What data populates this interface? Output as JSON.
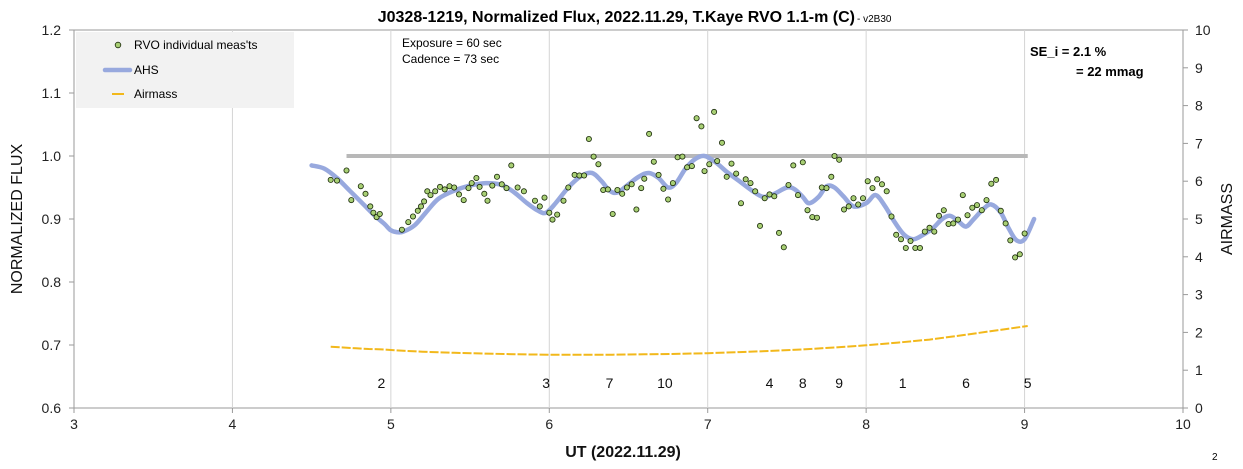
{
  "chart_data": {
    "type": "scatter",
    "title": "J0328-1219, Normalized Flux, 2022.11.29, T.Kaye RVO 1.1-m (C)",
    "subtitle": " - v2B30",
    "xlabel": "UT (2022.11.29)",
    "ylabel": "NORMALIZED FLUX",
    "y2label": "AIRMASS",
    "xlim": [
      3,
      10
    ],
    "ylim": [
      0.6,
      1.2
    ],
    "y2lim": [
      0,
      10
    ],
    "x_ticks": [
      "3",
      "4",
      "5",
      "6",
      "7",
      "8",
      "9",
      "10"
    ],
    "y_ticks": [
      "0.6",
      "0.7",
      "0.8",
      "0.9",
      "1.0",
      "1.1",
      "1.2"
    ],
    "y2_ticks": [
      "0",
      "1",
      "2",
      "3",
      "4",
      "5",
      "6",
      "7",
      "8",
      "9",
      "10"
    ],
    "grid": "vertical",
    "legend": {
      "placement": "top-left",
      "entries": [
        "RVO individual meas'ts",
        "AHS",
        "Airmass"
      ]
    },
    "annotations": {
      "exposure": "Exposure = 60 sec",
      "cadence": "Cadence  = 73 sec",
      "se_line1": "SE_i = 2.1 %",
      "se_line2": "= 22 mmag"
    },
    "colors": {
      "points_fill": "#a8cf74",
      "points_stroke": "#1a2a0a",
      "ahs": "#98a9de",
      "airmass": "#f2b81b",
      "reference": "#b8b8b8"
    },
    "reference_line": {
      "x": [
        4.72,
        9.02
      ],
      "y": 1.0
    },
    "chunk_labels": [
      {
        "x": 4.94,
        "label": "2"
      },
      {
        "x": 5.98,
        "label": "3"
      },
      {
        "x": 6.38,
        "label": "7"
      },
      {
        "x": 6.73,
        "label": "10"
      },
      {
        "x": 7.39,
        "label": "4"
      },
      {
        "x": 7.6,
        "label": "8"
      },
      {
        "x": 7.83,
        "label": "9"
      },
      {
        "x": 8.23,
        "label": "1"
      },
      {
        "x": 8.63,
        "label": "6"
      },
      {
        "x": 9.02,
        "label": "5"
      }
    ],
    "series": [
      {
        "name": "RVO individual meas'ts",
        "type": "scatter",
        "points": [
          [
            4.62,
            0.962
          ],
          [
            4.66,
            0.961
          ],
          [
            4.72,
            0.977
          ],
          [
            4.75,
            0.93
          ],
          [
            4.81,
            0.952
          ],
          [
            4.84,
            0.94
          ],
          [
            4.87,
            0.92
          ],
          [
            4.89,
            0.91
          ],
          [
            4.91,
            0.903
          ],
          [
            4.93,
            0.908
          ],
          [
            5.07,
            0.883
          ],
          [
            5.11,
            0.895
          ],
          [
            5.14,
            0.904
          ],
          [
            5.17,
            0.913
          ],
          [
            5.19,
            0.92
          ],
          [
            5.21,
            0.928
          ],
          [
            5.23,
            0.944
          ],
          [
            5.25,
            0.938
          ],
          [
            5.28,
            0.944
          ],
          [
            5.31,
            0.951
          ],
          [
            5.34,
            0.947
          ],
          [
            5.37,
            0.952
          ],
          [
            5.4,
            0.95
          ],
          [
            5.43,
            0.939
          ],
          [
            5.46,
            0.93
          ],
          [
            5.49,
            0.949
          ],
          [
            5.51,
            0.957
          ],
          [
            5.54,
            0.965
          ],
          [
            5.56,
            0.951
          ],
          [
            5.59,
            0.94
          ],
          [
            5.61,
            0.929
          ],
          [
            5.64,
            0.953
          ],
          [
            5.67,
            0.967
          ],
          [
            5.7,
            0.955
          ],
          [
            5.73,
            0.949
          ],
          [
            5.76,
            0.985
          ],
          [
            5.8,
            0.95
          ],
          [
            5.84,
            0.944
          ],
          [
            5.91,
            0.929
          ],
          [
            5.94,
            0.92
          ],
          [
            5.97,
            0.934
          ],
          [
            6.0,
            0.91
          ],
          [
            6.02,
            0.899
          ],
          [
            6.05,
            0.907
          ],
          [
            6.09,
            0.929
          ],
          [
            6.12,
            0.95
          ],
          [
            6.16,
            0.97
          ],
          [
            6.19,
            0.969
          ],
          [
            6.22,
            0.969
          ],
          [
            6.25,
            1.027
          ],
          [
            6.28,
            0.999
          ],
          [
            6.31,
            0.987
          ],
          [
            6.34,
            0.946
          ],
          [
            6.37,
            0.947
          ],
          [
            6.4,
            0.908
          ],
          [
            6.43,
            0.946
          ],
          [
            6.46,
            0.94
          ],
          [
            6.49,
            0.95
          ],
          [
            6.52,
            0.955
          ],
          [
            6.55,
            0.915
          ],
          [
            6.58,
            0.949
          ],
          [
            6.6,
            0.964
          ],
          [
            6.63,
            1.035
          ],
          [
            6.66,
            0.991
          ],
          [
            6.69,
            0.97
          ],
          [
            6.72,
            0.948
          ],
          [
            6.75,
            0.931
          ],
          [
            6.78,
            0.957
          ],
          [
            6.81,
            0.998
          ],
          [
            6.84,
            0.999
          ],
          [
            6.87,
            0.982
          ],
          [
            6.9,
            0.984
          ],
          [
            6.93,
            1.06
          ],
          [
            6.96,
            1.047
          ],
          [
            6.98,
            0.976
          ],
          [
            7.01,
            0.987
          ],
          [
            7.04,
            1.07
          ],
          [
            7.06,
            0.992
          ],
          [
            7.09,
            1.021
          ],
          [
            7.12,
            0.967
          ],
          [
            7.15,
            0.988
          ],
          [
            7.18,
            0.972
          ],
          [
            7.21,
            0.925
          ],
          [
            7.24,
            0.963
          ],
          [
            7.27,
            0.957
          ],
          [
            7.3,
            0.944
          ],
          [
            7.33,
            0.889
          ],
          [
            7.36,
            0.933
          ],
          [
            7.39,
            0.939
          ],
          [
            7.42,
            0.936
          ],
          [
            7.45,
            0.878
          ],
          [
            7.48,
            0.855
          ],
          [
            7.51,
            0.954
          ],
          [
            7.54,
            0.985
          ],
          [
            7.57,
            0.938
          ],
          [
            7.6,
            0.99
          ],
          [
            7.63,
            0.914
          ],
          [
            7.66,
            0.903
          ],
          [
            7.69,
            0.902
          ],
          [
            7.72,
            0.95
          ],
          [
            7.75,
            0.949
          ],
          [
            7.78,
            0.967
          ],
          [
            7.8,
            1.0
          ],
          [
            7.83,
            0.994
          ],
          [
            7.86,
            0.915
          ],
          [
            7.89,
            0.92
          ],
          [
            7.92,
            0.933
          ],
          [
            7.95,
            0.923
          ],
          [
            7.98,
            0.933
          ],
          [
            8.01,
            0.96
          ],
          [
            8.04,
            0.949
          ],
          [
            8.07,
            0.963
          ],
          [
            8.1,
            0.955
          ],
          [
            8.13,
            0.944
          ],
          [
            8.16,
            0.904
          ],
          [
            8.19,
            0.875
          ],
          [
            8.22,
            0.868
          ],
          [
            8.25,
            0.854
          ],
          [
            8.28,
            0.865
          ],
          [
            8.31,
            0.854
          ],
          [
            8.34,
            0.854
          ],
          [
            8.37,
            0.88
          ],
          [
            8.4,
            0.886
          ],
          [
            8.43,
            0.88
          ],
          [
            8.46,
            0.905
          ],
          [
            8.49,
            0.914
          ],
          [
            8.52,
            0.892
          ],
          [
            8.55,
            0.893
          ],
          [
            8.58,
            0.899
          ],
          [
            8.61,
            0.938
          ],
          [
            8.64,
            0.906
          ],
          [
            8.67,
            0.918
          ],
          [
            8.7,
            0.922
          ],
          [
            8.73,
            0.914
          ],
          [
            8.76,
            0.93
          ],
          [
            8.79,
            0.956
          ],
          [
            8.82,
            0.962
          ],
          [
            8.85,
            0.913
          ],
          [
            8.88,
            0.893
          ],
          [
            8.91,
            0.866
          ],
          [
            8.94,
            0.839
          ],
          [
            8.97,
            0.844
          ],
          [
            9.0,
            0.877
          ]
        ]
      },
      {
        "name": "AHS",
        "type": "line",
        "points": [
          [
            4.5,
            0.985
          ],
          [
            4.58,
            0.98
          ],
          [
            4.66,
            0.965
          ],
          [
            4.74,
            0.945
          ],
          [
            4.82,
            0.925
          ],
          [
            4.9,
            0.905
          ],
          [
            4.96,
            0.892
          ],
          [
            5.0,
            0.882
          ],
          [
            5.04,
            0.879
          ],
          [
            5.08,
            0.88
          ],
          [
            5.15,
            0.89
          ],
          [
            5.22,
            0.91
          ],
          [
            5.3,
            0.932
          ],
          [
            5.4,
            0.945
          ],
          [
            5.5,
            0.953
          ],
          [
            5.6,
            0.957
          ],
          [
            5.7,
            0.954
          ],
          [
            5.78,
            0.942
          ],
          [
            5.86,
            0.925
          ],
          [
            5.93,
            0.913
          ],
          [
            5.98,
            0.91
          ],
          [
            6.04,
            0.925
          ],
          [
            6.12,
            0.95
          ],
          [
            6.2,
            0.968
          ],
          [
            6.27,
            0.973
          ],
          [
            6.33,
            0.96
          ],
          [
            6.38,
            0.945
          ],
          [
            6.43,
            0.942
          ],
          [
            6.5,
            0.955
          ],
          [
            6.57,
            0.968
          ],
          [
            6.63,
            0.973
          ],
          [
            6.69,
            0.965
          ],
          [
            6.75,
            0.95
          ],
          [
            6.8,
            0.957
          ],
          [
            6.86,
            0.98
          ],
          [
            6.92,
            0.995
          ],
          [
            6.98,
            1.0
          ],
          [
            7.05,
            0.99
          ],
          [
            7.12,
            0.975
          ],
          [
            7.2,
            0.96
          ],
          [
            7.28,
            0.945
          ],
          [
            7.35,
            0.935
          ],
          [
            7.42,
            0.94
          ],
          [
            7.5,
            0.95
          ],
          [
            7.55,
            0.947
          ],
          [
            7.6,
            0.935
          ],
          [
            7.64,
            0.925
          ],
          [
            7.7,
            0.935
          ],
          [
            7.75,
            0.952
          ],
          [
            7.8,
            0.95
          ],
          [
            7.86,
            0.935
          ],
          [
            7.92,
            0.92
          ],
          [
            8.0,
            0.925
          ],
          [
            8.06,
            0.938
          ],
          [
            8.12,
            0.92
          ],
          [
            8.18,
            0.895
          ],
          [
            8.24,
            0.875
          ],
          [
            8.3,
            0.868
          ],
          [
            8.36,
            0.875
          ],
          [
            8.42,
            0.885
          ],
          [
            8.48,
            0.9
          ],
          [
            8.53,
            0.905
          ],
          [
            8.58,
            0.897
          ],
          [
            8.63,
            0.888
          ],
          [
            8.68,
            0.9
          ],
          [
            8.74,
            0.916
          ],
          [
            8.79,
            0.923
          ],
          [
            8.85,
            0.91
          ],
          [
            8.9,
            0.885
          ],
          [
            8.95,
            0.866
          ],
          [
            9.0,
            0.868
          ],
          [
            9.06,
            0.9
          ]
        ]
      },
      {
        "name": "Airmass",
        "type": "line",
        "axis": "y2",
        "points": [
          [
            4.62,
            1.62
          ],
          [
            4.7,
            1.6
          ],
          [
            4.78,
            1.58
          ],
          [
            4.86,
            1.56
          ],
          [
            4.94,
            1.55
          ],
          [
            5.05,
            1.52
          ],
          [
            5.2,
            1.49
          ],
          [
            5.4,
            1.46
          ],
          [
            5.6,
            1.44
          ],
          [
            5.8,
            1.42
          ],
          [
            6.0,
            1.41
          ],
          [
            6.2,
            1.41
          ],
          [
            6.4,
            1.41
          ],
          [
            6.6,
            1.42
          ],
          [
            6.8,
            1.43
          ],
          [
            7.0,
            1.45
          ],
          [
            7.2,
            1.48
          ],
          [
            7.4,
            1.51
          ],
          [
            7.6,
            1.55
          ],
          [
            7.8,
            1.6
          ],
          [
            8.0,
            1.66
          ],
          [
            8.2,
            1.73
          ],
          [
            8.4,
            1.81
          ],
          [
            8.6,
            1.92
          ],
          [
            8.8,
            2.04
          ],
          [
            9.02,
            2.17
          ]
        ]
      }
    ]
  }
}
